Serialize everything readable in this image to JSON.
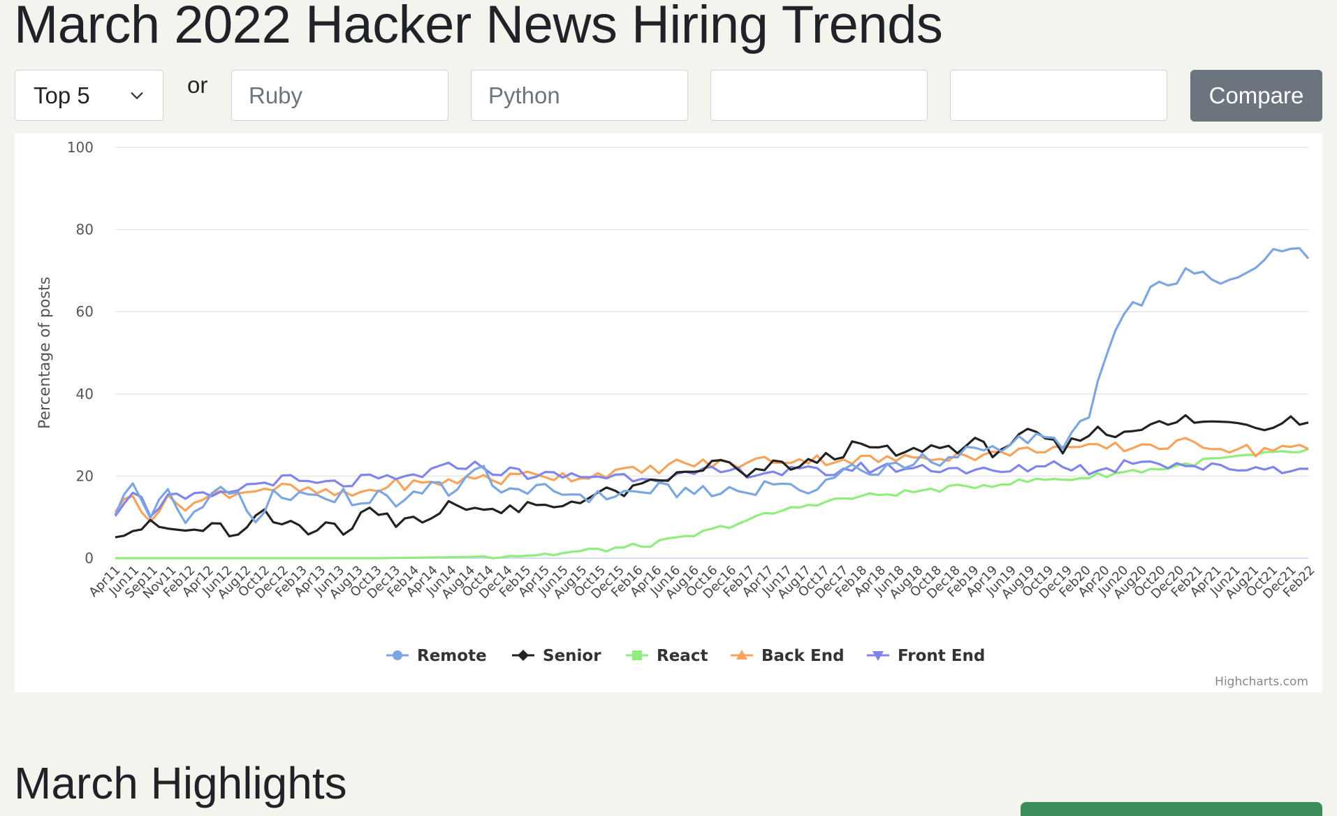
{
  "page": {
    "title": "March 2022 Hacker News Hiring Trends",
    "highlights_title": "March Highlights"
  },
  "controls": {
    "select_value": "Top 5",
    "or_label": "or",
    "inputs": [
      {
        "value": "",
        "placeholder": "Ruby"
      },
      {
        "value": "",
        "placeholder": "Python"
      },
      {
        "value": "",
        "placeholder": ""
      },
      {
        "value": "",
        "placeholder": ""
      }
    ],
    "compare_label": "Compare",
    "chevron_icon": "chevron-down-icon"
  },
  "chart_data": {
    "type": "line",
    "ylabel": "Percentage of posts",
    "xlabel": "",
    "ylim": [
      0,
      100
    ],
    "yticks": [
      0,
      20,
      40,
      60,
      80,
      100
    ],
    "grid": true,
    "legend_placement": "bottom-center",
    "credit": "Highcharts.com",
    "x_tick_labels": [
      "Apr11",
      "Jun11",
      "Sep11",
      "Nov11",
      "Feb12",
      "Apr12",
      "Jun12",
      "Aug12",
      "Oct12",
      "Dec12",
      "Feb13",
      "Apr13",
      "Jun13",
      "Aug13",
      "Oct13",
      "Dec13",
      "Feb14",
      "Apr14",
      "Jun14",
      "Aug14",
      "Oct14",
      "Dec14",
      "Feb15",
      "Apr15",
      "Jun15",
      "Aug15",
      "Oct15",
      "Dec15",
      "Feb16",
      "Apr16",
      "Jun16",
      "Aug16",
      "Oct16",
      "Dec16",
      "Feb17",
      "Apr17",
      "Jun17",
      "Aug17",
      "Oct17",
      "Dec17",
      "Feb18",
      "Apr18",
      "Jun18",
      "Aug18",
      "Oct18",
      "Dec18",
      "Feb19",
      "Apr19",
      "Jun19",
      "Aug19",
      "Oct19",
      "Dec19",
      "Feb20",
      "Apr20",
      "Jun20",
      "Aug20",
      "Oct20",
      "Dec20",
      "Feb21",
      "Apr21",
      "Jun21",
      "Aug21",
      "Oct21",
      "Dec21",
      "Feb22"
    ],
    "series": [
      {
        "name": "Remote",
        "color": "#7ca6e0",
        "marker": "circle",
        "anchors": [
          [
            0,
            11.5
          ],
          [
            2,
            18
          ],
          [
            4,
            10.5
          ],
          [
            6,
            16
          ],
          [
            8,
            8.5
          ],
          [
            10,
            14
          ],
          [
            12,
            17
          ],
          [
            14,
            15
          ],
          [
            16,
            9
          ],
          [
            18,
            15
          ],
          [
            20,
            13
          ],
          [
            22,
            17
          ],
          [
            24,
            13
          ],
          [
            26,
            16
          ],
          [
            28,
            12
          ],
          [
            30,
            17
          ],
          [
            32,
            13
          ],
          [
            34,
            16
          ],
          [
            36,
            18
          ],
          [
            38,
            16
          ],
          [
            40,
            19
          ],
          [
            42,
            22
          ],
          [
            44,
            16
          ],
          [
            46,
            16
          ],
          [
            48,
            18
          ],
          [
            50,
            15
          ],
          [
            52,
            16
          ],
          [
            54,
            15
          ],
          [
            56,
            15
          ],
          [
            58,
            16
          ],
          [
            60,
            16
          ],
          [
            62,
            17
          ],
          [
            64,
            16
          ],
          [
            66,
            17
          ],
          [
            68,
            15
          ],
          [
            70,
            17
          ],
          [
            72,
            16
          ],
          [
            74,
            18
          ],
          [
            76,
            19
          ],
          [
            78,
            15
          ],
          [
            80,
            18
          ],
          [
            82,
            20
          ],
          [
            84,
            22
          ],
          [
            86,
            20
          ],
          [
            88,
            23
          ],
          [
            90,
            23
          ],
          [
            92,
            24
          ],
          [
            94,
            22
          ],
          [
            96,
            25
          ],
          [
            98,
            27
          ],
          [
            100,
            27
          ],
          [
            102,
            28
          ],
          [
            104,
            29
          ],
          [
            106,
            29
          ],
          [
            108,
            28
          ],
          [
            110,
            32
          ],
          [
            111,
            34
          ],
          [
            112,
            43
          ],
          [
            114,
            55
          ],
          [
            116,
            61
          ],
          [
            118,
            65
          ],
          [
            120,
            67
          ],
          [
            122,
            69
          ],
          [
            124,
            69
          ],
          [
            126,
            66
          ],
          [
            128,
            69
          ],
          [
            130,
            72
          ],
          [
            132,
            74
          ],
          [
            134,
            76
          ],
          [
            135,
            77
          ],
          [
            136,
            74.5
          ]
        ]
      },
      {
        "name": "Senior",
        "color": "#222222",
        "marker": "diamond",
        "anchors": [
          [
            0,
            6.5
          ],
          [
            2,
            7
          ],
          [
            4,
            8
          ],
          [
            6,
            7
          ],
          [
            8,
            6.5
          ],
          [
            10,
            7
          ],
          [
            12,
            7.5
          ],
          [
            14,
            5
          ],
          [
            16,
            9
          ],
          [
            17,
            12
          ],
          [
            18,
            7.5
          ],
          [
            20,
            9
          ],
          [
            22,
            7
          ],
          [
            24,
            9
          ],
          [
            26,
            5.5
          ],
          [
            28,
            11
          ],
          [
            30,
            12
          ],
          [
            32,
            9
          ],
          [
            34,
            11
          ],
          [
            35,
            8
          ],
          [
            37,
            10
          ],
          [
            38,
            14
          ],
          [
            40,
            12
          ],
          [
            42,
            13
          ],
          [
            44,
            11
          ],
          [
            46,
            12
          ],
          [
            48,
            12.5
          ],
          [
            50,
            12
          ],
          [
            52,
            14
          ],
          [
            54,
            15
          ],
          [
            56,
            16
          ],
          [
            58,
            16
          ],
          [
            60,
            17
          ],
          [
            62,
            19
          ],
          [
            64,
            20
          ],
          [
            66,
            21
          ],
          [
            68,
            23
          ],
          [
            70,
            23
          ],
          [
            72,
            19
          ],
          [
            74,
            22
          ],
          [
            76,
            23
          ],
          [
            78,
            22
          ],
          [
            80,
            24
          ],
          [
            82,
            25
          ],
          [
            84,
            27
          ],
          [
            86,
            27
          ],
          [
            88,
            26
          ],
          [
            90,
            25
          ],
          [
            92,
            27
          ],
          [
            94,
            27
          ],
          [
            96,
            27
          ],
          [
            98,
            28
          ],
          [
            100,
            26
          ],
          [
            102,
            28
          ],
          [
            104,
            30
          ],
          [
            106,
            29
          ],
          [
            108,
            26
          ],
          [
            110,
            30
          ],
          [
            112,
            31
          ],
          [
            114,
            30
          ],
          [
            116,
            32
          ],
          [
            118,
            33
          ],
          [
            120,
            32
          ],
          [
            122,
            34
          ],
          [
            124,
            33
          ],
          [
            126,
            33
          ],
          [
            128,
            34
          ],
          [
            130,
            32
          ],
          [
            132,
            33
          ],
          [
            134,
            34
          ],
          [
            136,
            33
          ]
        ]
      },
      {
        "name": "React",
        "color": "#90ed7d",
        "marker": "square",
        "anchors": [
          [
            0,
            0
          ],
          [
            30,
            0
          ],
          [
            40,
            0.3
          ],
          [
            50,
            1
          ],
          [
            55,
            2
          ],
          [
            60,
            3
          ],
          [
            65,
            5
          ],
          [
            70,
            8
          ],
          [
            75,
            11
          ],
          [
            80,
            13.5
          ],
          [
            85,
            15
          ],
          [
            90,
            16
          ],
          [
            95,
            17
          ],
          [
            100,
            18
          ],
          [
            105,
            19
          ],
          [
            110,
            19.5
          ],
          [
            115,
            21
          ],
          [
            120,
            22
          ],
          [
            125,
            24
          ],
          [
            130,
            25
          ],
          [
            135,
            26
          ],
          [
            140,
            27
          ]
        ]
      },
      {
        "name": "Back End",
        "color": "#f7a35c",
        "marker": "triangle",
        "anchors": [
          [
            0,
            12
          ],
          [
            2,
            15
          ],
          [
            4,
            10
          ],
          [
            6,
            14
          ],
          [
            8,
            13
          ],
          [
            10,
            14
          ],
          [
            12,
            16
          ],
          [
            14,
            16
          ],
          [
            16,
            17
          ],
          [
            18,
            17
          ],
          [
            20,
            17
          ],
          [
            22,
            16
          ],
          [
            24,
            16
          ],
          [
            26,
            15
          ],
          [
            28,
            16
          ],
          [
            30,
            17
          ],
          [
            32,
            18
          ],
          [
            34,
            18
          ],
          [
            36,
            18
          ],
          [
            38,
            19
          ],
          [
            40,
            19
          ],
          [
            42,
            20
          ],
          [
            44,
            19
          ],
          [
            46,
            20
          ],
          [
            48,
            21
          ],
          [
            50,
            20
          ],
          [
            52,
            20
          ],
          [
            54,
            20
          ],
          [
            56,
            21
          ],
          [
            58,
            21
          ],
          [
            60,
            21
          ],
          [
            62,
            22
          ],
          [
            64,
            23
          ],
          [
            66,
            23
          ],
          [
            68,
            23
          ],
          [
            70,
            23
          ],
          [
            72,
            23
          ],
          [
            74,
            24
          ],
          [
            76,
            24
          ],
          [
            78,
            24
          ],
          [
            80,
            24
          ],
          [
            82,
            24
          ],
          [
            84,
            24
          ],
          [
            86,
            24
          ],
          [
            88,
            24
          ],
          [
            90,
            24
          ],
          [
            92,
            25
          ],
          [
            94,
            25
          ],
          [
            96,
            25
          ],
          [
            98,
            25
          ],
          [
            100,
            25
          ],
          [
            102,
            26
          ],
          [
            104,
            26
          ],
          [
            106,
            27
          ],
          [
            108,
            27
          ],
          [
            110,
            26
          ],
          [
            112,
            27
          ],
          [
            114,
            27
          ],
          [
            116,
            27
          ],
          [
            118,
            28
          ],
          [
            120,
            27
          ],
          [
            122,
            28
          ],
          [
            124,
            28
          ],
          [
            126,
            27
          ],
          [
            128,
            27
          ],
          [
            130,
            26
          ],
          [
            132,
            27
          ],
          [
            134,
            27
          ],
          [
            136,
            26
          ]
        ]
      },
      {
        "name": "Front End",
        "color": "#8085e9",
        "marker": "triangle-down",
        "anchors": [
          [
            0,
            11.5
          ],
          [
            2,
            17
          ],
          [
            4,
            11
          ],
          [
            6,
            15
          ],
          [
            8,
            14
          ],
          [
            10,
            15
          ],
          [
            12,
            15
          ],
          [
            14,
            17
          ],
          [
            16,
            18
          ],
          [
            18,
            19
          ],
          [
            20,
            19
          ],
          [
            22,
            18
          ],
          [
            24,
            18
          ],
          [
            26,
            18
          ],
          [
            28,
            19
          ],
          [
            30,
            19
          ],
          [
            32,
            19
          ],
          [
            34,
            20
          ],
          [
            36,
            21
          ],
          [
            38,
            22
          ],
          [
            40,
            23
          ],
          [
            42,
            22
          ],
          [
            44,
            21
          ],
          [
            46,
            21
          ],
          [
            48,
            20
          ],
          [
            50,
            20
          ],
          [
            52,
            20
          ],
          [
            54,
            20
          ],
          [
            56,
            20
          ],
          [
            58,
            20
          ],
          [
            60,
            20
          ],
          [
            62,
            20
          ],
          [
            64,
            20
          ],
          [
            66,
            20
          ],
          [
            68,
            21
          ],
          [
            70,
            21
          ],
          [
            72,
            21
          ],
          [
            74,
            21
          ],
          [
            76,
            21
          ],
          [
            78,
            21
          ],
          [
            80,
            21
          ],
          [
            82,
            21
          ],
          [
            84,
            22
          ],
          [
            86,
            22
          ],
          [
            88,
            22
          ],
          [
            90,
            22
          ],
          [
            92,
            22
          ],
          [
            94,
            22
          ],
          [
            96,
            22
          ],
          [
            98,
            21
          ],
          [
            100,
            21
          ],
          [
            102,
            21
          ],
          [
            104,
            22
          ],
          [
            106,
            23
          ],
          [
            108,
            23
          ],
          [
            110,
            22
          ],
          [
            112,
            21
          ],
          [
            114,
            22
          ],
          [
            116,
            24
          ],
          [
            118,
            24
          ],
          [
            120,
            23
          ],
          [
            122,
            23
          ],
          [
            124,
            22
          ],
          [
            126,
            22
          ],
          [
            128,
            22
          ],
          [
            130,
            22
          ],
          [
            132,
            22
          ],
          [
            134,
            22
          ],
          [
            136,
            21
          ]
        ]
      }
    ]
  }
}
